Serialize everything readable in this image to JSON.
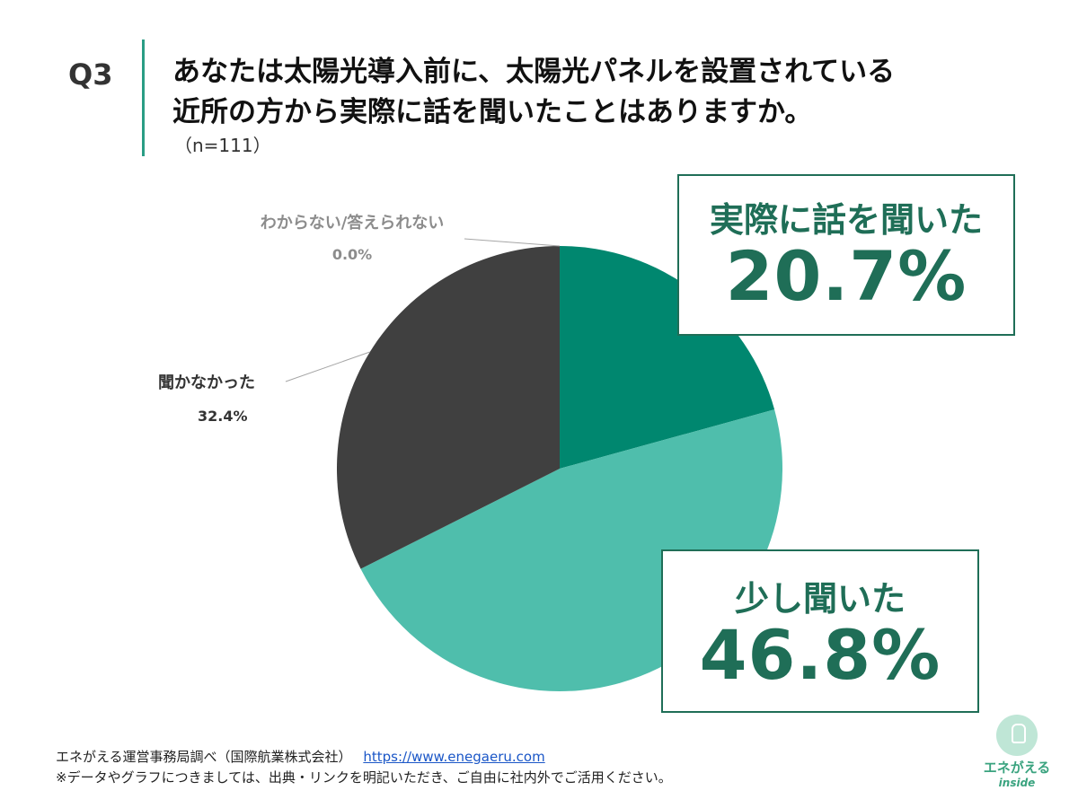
{
  "header": {
    "question_no": "Q3",
    "question_line1": "あなたは太陽光導入前に、太陽光パネルを設置されている",
    "question_line2": "近所の方から実際に話を聞いたことはありますか。",
    "sample": "（n=111）"
  },
  "chart_data": {
    "type": "pie",
    "title": "あなたは太陽光導入前に、太陽光パネルを設置されている近所の方から実際に話を聞いたことはありますか。",
    "categories": [
      "実際に話を聞いた",
      "少し聞いた",
      "聞かなかった",
      "わからない/答えられない"
    ],
    "values": [
      20.7,
      46.8,
      32.4,
      0.0
    ],
    "value_labels": [
      "20.7%",
      "46.8%",
      "32.4%",
      "0.0%"
    ],
    "colors": [
      "#00876f",
      "#4fbeac",
      "#404040",
      "#c8c8c8"
    ]
  },
  "footer": {
    "source": "エネがえる運営事務局調べ（国際航業株式会社）",
    "url": "https://www.enegaeru.com",
    "note": "※データやグラフにつきましては、出典・リンクを明記いただき、ご自由に社内外でご活用ください。"
  },
  "logo": {
    "name": "エネがえる",
    "sub": "inside"
  }
}
